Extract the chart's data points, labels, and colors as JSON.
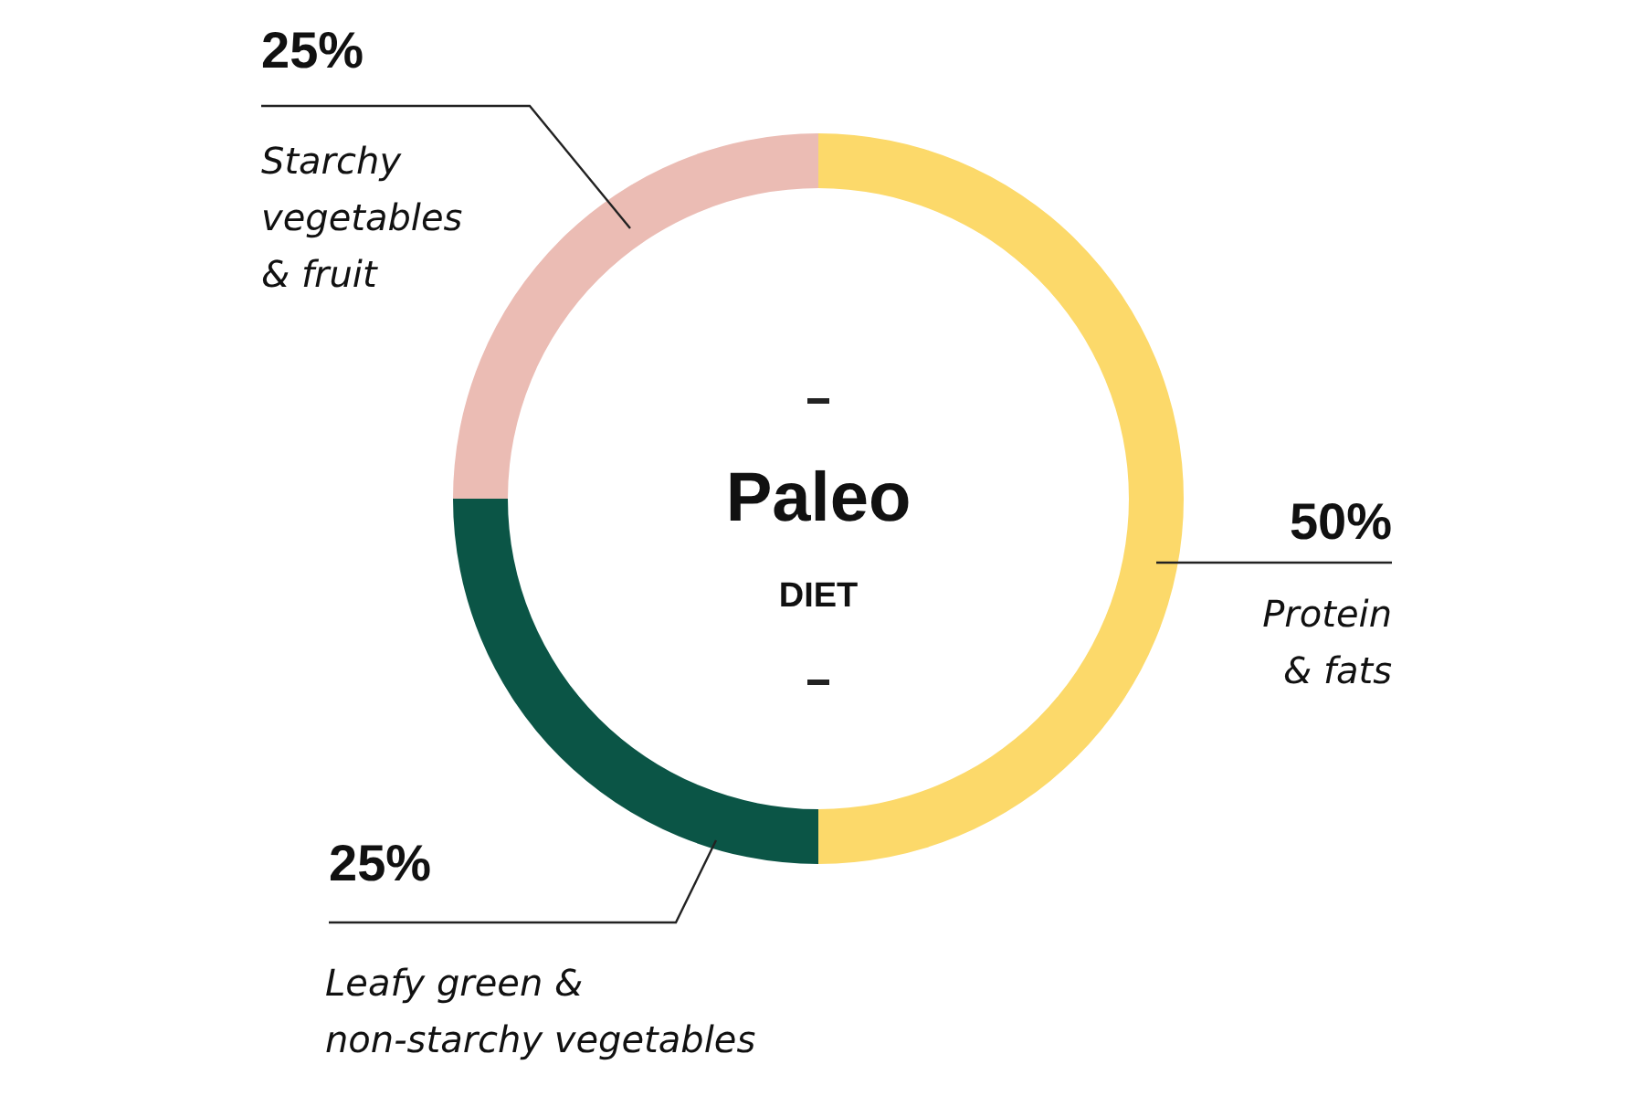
{
  "chart_data": {
    "type": "donut",
    "title": "Paleo",
    "subtitle": "DIET",
    "categories": [
      "Protein & fats",
      "Leafy green & non-starchy vegetables",
      "Starchy vegetables & fruit"
    ],
    "values": [
      50,
      25,
      25
    ],
    "colors": [
      "#fcd96a",
      "#0b5546",
      "#ebbcb4"
    ],
    "value_labels": [
      "50%",
      "25%",
      "25%"
    ]
  }
}
